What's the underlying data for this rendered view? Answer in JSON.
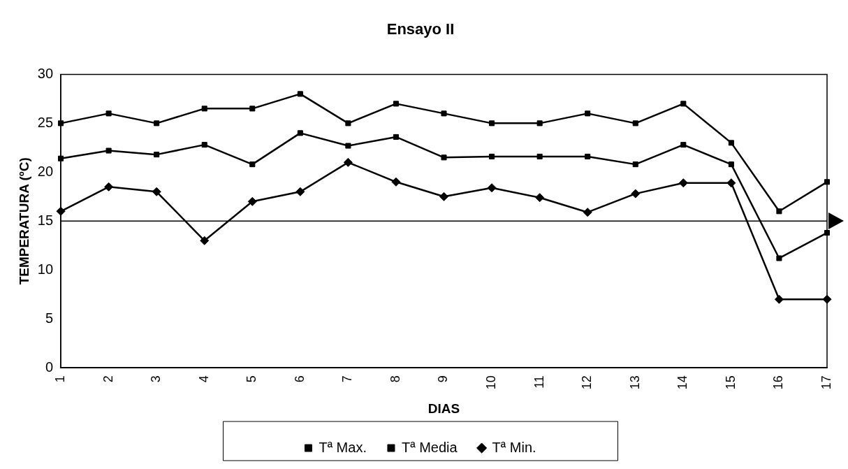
{
  "chart_data": {
    "type": "line",
    "title": "Ensayo II",
    "xlabel": "DIAS",
    "ylabel": "TEMPERATURA (ºC)",
    "categories": [
      "1",
      "2",
      "3",
      "4",
      "5",
      "6",
      "7",
      "8",
      "9",
      "10",
      "11",
      "12",
      "13",
      "14",
      "15",
      "16",
      "17"
    ],
    "series": [
      {
        "name": "Tª Max.",
        "color": "#000000",
        "marker": "square",
        "values": [
          25,
          26,
          25,
          26.5,
          26.5,
          28,
          25,
          27,
          26,
          25,
          25,
          26,
          25,
          27,
          23,
          16,
          19
        ]
      },
      {
        "name": "Tª Media",
        "color": "#000000",
        "marker": "square",
        "values": [
          21.4,
          22.2,
          21.8,
          22.8,
          20.8,
          24,
          22.7,
          23.6,
          21.5,
          21.6,
          21.6,
          21.6,
          20.8,
          22.8,
          20.8,
          11.2,
          13.8
        ]
      },
      {
        "name": "Tª Min.",
        "color": "#000000",
        "marker": "diamond",
        "values": [
          16,
          18.5,
          18,
          13,
          17,
          18,
          21,
          19,
          17.5,
          18.4,
          17.4,
          15.9,
          17.8,
          18.9,
          18.9,
          7,
          7
        ]
      }
    ],
    "ylim": [
      0,
      30
    ],
    "yticks": [
      0,
      5,
      10,
      15,
      20,
      25,
      30
    ],
    "grid": false,
    "legend": "bottom",
    "ref_lines": [
      {
        "axis": "y",
        "value": 15,
        "color": "#000000"
      }
    ]
  }
}
